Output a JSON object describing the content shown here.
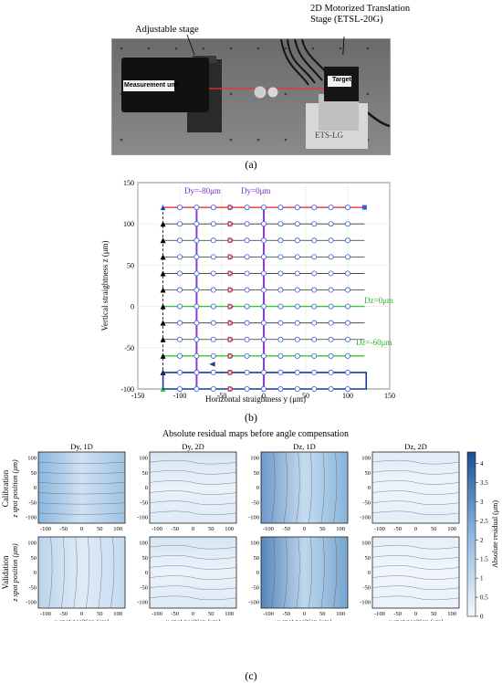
{
  "photo": {
    "label_adjustable_stage": "Adjustable stage",
    "label_motorized_stage": "2D Motorized Translation Stage (ETSL-20G)",
    "label_measurement_unit": "Measurement unit",
    "label_target": "Target",
    "label_ets": "ETS-LG",
    "caption": "(a)"
  },
  "figure_b": {
    "caption": "(b)",
    "annot_dy_m80": "Dy=-80μm",
    "annot_dy_0": "Dy=0μm",
    "annot_dz_0": "Dz=0μm",
    "annot_dz_m60": "Dz=-60μm"
  },
  "chart_data": [
    {
      "type": "scatter",
      "title": "",
      "xlabel": "Horizontal straightness y (μm)",
      "ylabel": "Vertical straightness z (μm)",
      "xlim": [
        -150,
        150
      ],
      "ylim": [
        -100,
        150
      ],
      "xticks": [
        -150,
        -100,
        -50,
        0,
        50,
        100,
        150
      ],
      "yticks": [
        -100,
        -50,
        0,
        50,
        100,
        150
      ],
      "grid": true,
      "scan_rows_z": [
        120,
        100,
        80,
        60,
        40,
        20,
        0,
        -20,
        -40,
        -60,
        -80,
        -100
      ],
      "scan_points_y": [
        -100,
        -80,
        -60,
        -40,
        -20,
        0,
        20,
        40,
        60,
        80,
        100
      ],
      "scan_start_y": -120,
      "scan_end_y": 120,
      "highlight_columns_y": [
        -80,
        0
      ],
      "highlight_rows_z": [
        0,
        -60
      ],
      "marker_column_y": -40,
      "colors": {
        "row_line": "#333333",
        "top_row": "#e02020",
        "highlight_row": "#2ecc2e",
        "highlight_col": "#8a3ddb",
        "point": "#3a5bd9",
        "return_path": "#1a3b8f",
        "marker": "#e02020"
      }
    },
    {
      "type": "heatmap",
      "suptitle": "Absolute residual maps before angle compensation",
      "panel_titles": [
        "Dy, 1D",
        "Dy, 2D",
        "Dz, 1D",
        "Dz, 2D"
      ],
      "row_labels": [
        "Calibration",
        "Validation"
      ],
      "ylabel": "z spot position (μm)",
      "xlabel": "y spot position (μm)",
      "xticks": [
        -100,
        -50,
        0,
        50,
        100
      ],
      "yticks": [
        100,
        50,
        0,
        -50,
        -100
      ],
      "colorbar_label": "Absolute residual (μm)",
      "colorbar_ticks": [
        0,
        0.5,
        1,
        1.5,
        2,
        2.5,
        3,
        3.5,
        4
      ],
      "colorbar_range": [
        0,
        4.3
      ],
      "panel_intensity": [
        [
          2.2,
          0.6,
          2.8,
          0.4
        ],
        [
          1.2,
          0.6,
          3.2,
          0.3
        ]
      ]
    }
  ],
  "figure_c": {
    "caption": "(c)"
  }
}
